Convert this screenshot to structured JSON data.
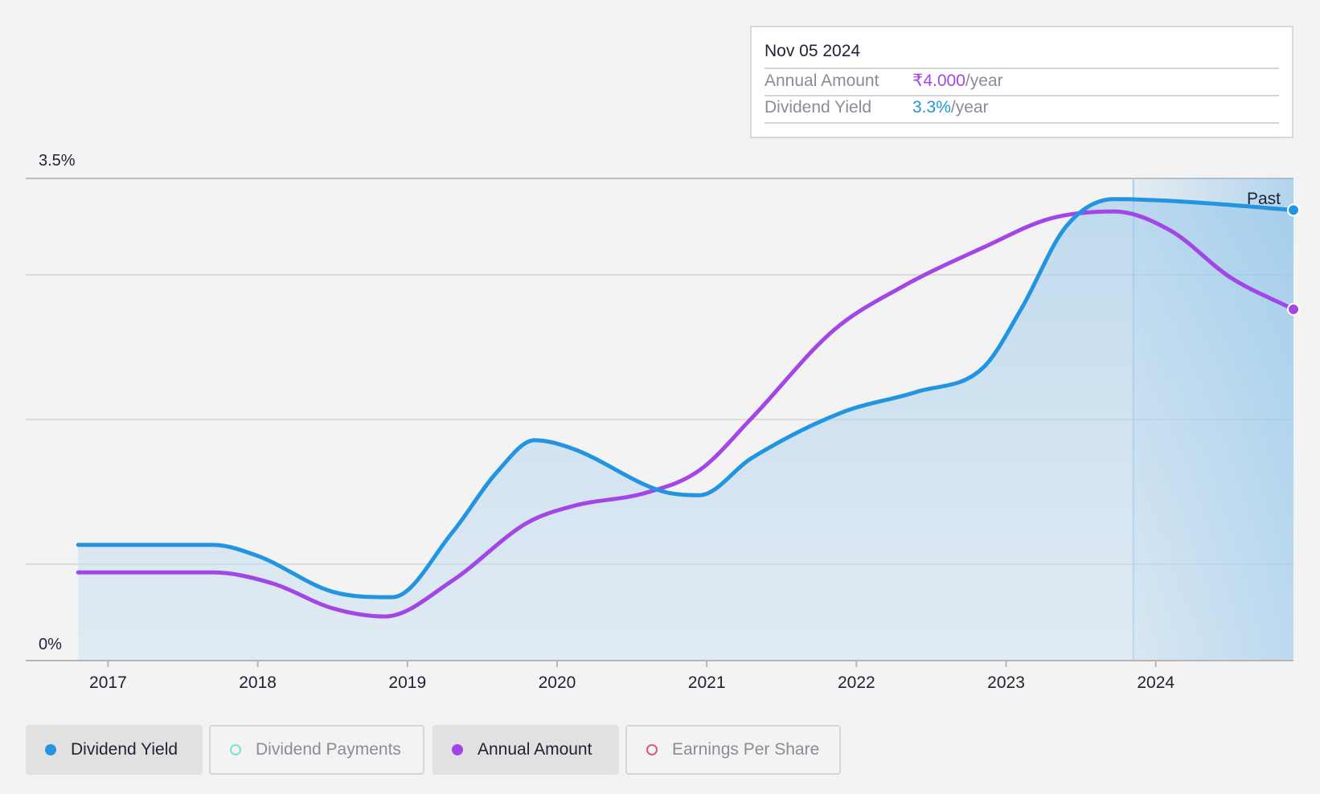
{
  "tooltip": {
    "date": "Nov 05 2024",
    "rows": [
      {
        "label": "Annual Amount",
        "value": "₹4.000",
        "unit": "/year"
      },
      {
        "label": "Dividend Yield",
        "value": "3.3%",
        "unit": "/year"
      }
    ]
  },
  "legend": {
    "items": [
      {
        "label": "Dividend Yield",
        "color": "#2394e0",
        "active": true,
        "style": "filled"
      },
      {
        "label": "Dividend Payments",
        "color": "#7be0d3",
        "active": false,
        "style": "outline"
      },
      {
        "label": "Annual Amount",
        "color": "#a346e6",
        "active": true,
        "style": "filled"
      },
      {
        "label": "Earnings Per Share",
        "color": "#d35a8c",
        "active": false,
        "style": "outline"
      }
    ]
  },
  "chart_data": {
    "type": "line",
    "ylim": [
      0,
      3.5
    ],
    "y_tick_labels": [
      "3.5%",
      "0%"
    ],
    "xlim": [
      2016.45,
      2024.92
    ],
    "x_tick_labels": [
      "2017",
      "2018",
      "2019",
      "2020",
      "2021",
      "2022",
      "2023",
      "2024"
    ],
    "x_ticks": [
      2017,
      2018,
      2019,
      2020,
      2021,
      2022,
      2023,
      2024
    ],
    "past_label": "Past",
    "past_start": 2023.85,
    "series": [
      {
        "name": "Dividend Yield",
        "color": "#2394e0",
        "filled": true,
        "x": [
          2016.8,
          2017.2,
          2017.7,
          2018.0,
          2018.5,
          2018.9,
          2019.3,
          2019.6,
          2019.85,
          2020.1,
          2020.7,
          2020.95,
          2021.3,
          2021.9,
          2022.4,
          2022.85,
          2023.1,
          2023.4,
          2023.72,
          2024.2,
          2024.92
        ],
        "y": [
          0.84,
          0.84,
          0.84,
          0.76,
          0.5,
          0.46,
          0.93,
          1.37,
          1.6,
          1.54,
          1.23,
          1.2,
          1.47,
          1.8,
          1.95,
          2.13,
          2.55,
          3.15,
          3.35,
          3.33,
          3.27
        ]
      },
      {
        "name": "Annual Amount",
        "color": "#a346e6",
        "filled": false,
        "x": [
          2016.8,
          2017.7,
          2018.1,
          2018.5,
          2018.85,
          2019.3,
          2019.8,
          2020.1,
          2020.6,
          2020.95,
          2021.3,
          2021.85,
          2022.3,
          2022.85,
          2023.3,
          2023.72,
          2024.1,
          2024.5,
          2024.92
        ],
        "y": [
          0.64,
          0.64,
          0.56,
          0.38,
          0.32,
          0.58,
          1.0,
          1.12,
          1.22,
          1.38,
          1.76,
          2.4,
          2.71,
          3.0,
          3.21,
          3.26,
          3.12,
          2.78,
          2.55
        ]
      }
    ]
  }
}
